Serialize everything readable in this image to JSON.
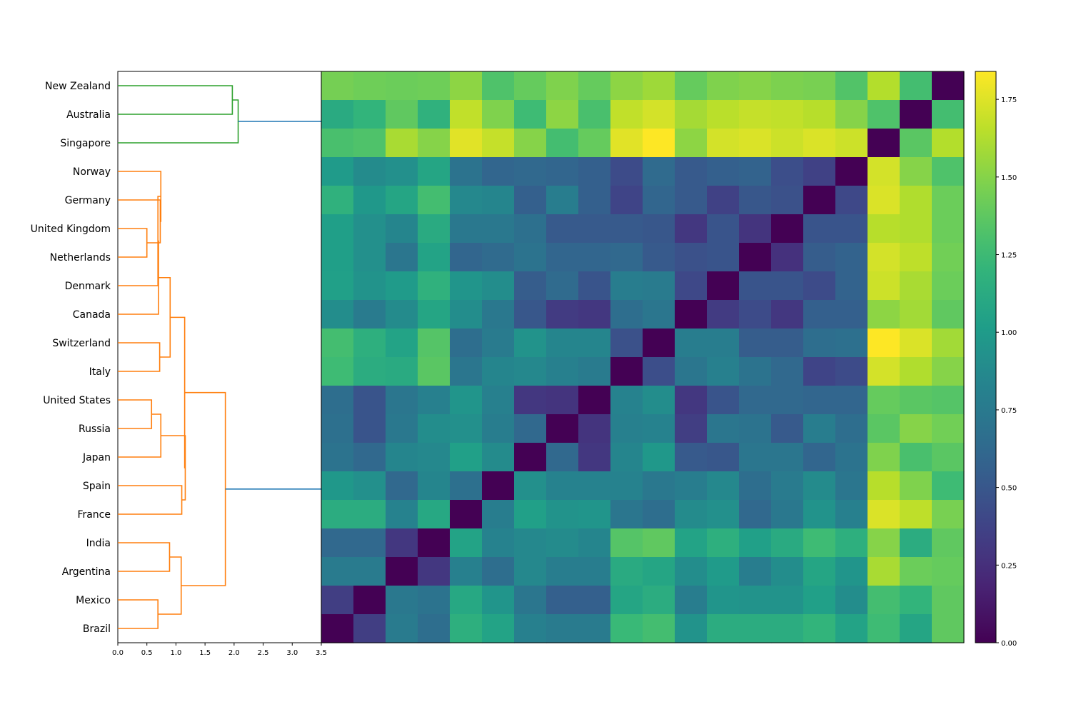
{
  "chart_data": {
    "type": "heatmap",
    "title": "",
    "xlabel": "",
    "ylabel": "",
    "rows": [
      "New Zealand",
      "Australia",
      "Singapore",
      "Norway",
      "Germany",
      "United Kingdom",
      "Netherlands",
      "Denmark",
      "Canada",
      "Switzerland",
      "Italy",
      "United States",
      "Russia",
      "Japan",
      "Spain",
      "France",
      "India",
      "Argentina",
      "Mexico",
      "Brazil"
    ],
    "colormap": "viridis",
    "vlim": [
      0,
      1.84
    ],
    "colorbar_ticks": [
      "0.00",
      "0.25",
      "0.50",
      "0.75",
      "1.00",
      "1.25",
      "1.50",
      "1.75"
    ],
    "dendrogram": {
      "xlim": [
        0,
        3.5
      ],
      "x_ticks": [
        "0.0",
        "0.5",
        "1.0",
        "1.5",
        "2.0",
        "2.5",
        "3.0",
        "3.5"
      ],
      "cluster_colors": {
        "c1": "#2ca02c",
        "c2": "#ff7f0e",
        "above": "#1f77b4"
      },
      "links": [
        {
          "a": "New Zealand",
          "b": "Australia",
          "height": 1.97,
          "color": "c1"
        },
        {
          "a": "L1",
          "b": "Singapore",
          "height": 2.07,
          "color": "c1"
        },
        {
          "a": "United Kingdom",
          "b": "Netherlands",
          "height": 0.5,
          "color": "c2"
        },
        {
          "a": "Germany",
          "b": "L3",
          "height": 0.73,
          "color": "c2"
        },
        {
          "a": "Norway",
          "b": "L4",
          "height": 0.74,
          "color": "c2"
        },
        {
          "a": "L5",
          "b": "Denmark",
          "height": 0.69,
          "color": "c2"
        },
        {
          "a": "L6",
          "b": "Canada",
          "height": 0.7,
          "color": "c2"
        },
        {
          "a": "Switzerland",
          "b": "Italy",
          "height": 0.72,
          "color": "c2"
        },
        {
          "a": "L7",
          "b": "L8",
          "height": 0.9,
          "color": "c2"
        },
        {
          "a": "United States",
          "b": "Russia",
          "height": 0.58,
          "color": "c2"
        },
        {
          "a": "L10",
          "b": "Japan",
          "height": 0.74,
          "color": "c2"
        },
        {
          "a": "Spain",
          "b": "France",
          "height": 1.1,
          "color": "c2"
        },
        {
          "a": "L11",
          "b": "L12",
          "height": 1.16,
          "color": "c2"
        },
        {
          "a": "L9",
          "b": "L13",
          "height": 1.15,
          "color": "c2"
        },
        {
          "a": "India",
          "b": "Argentina",
          "height": 0.89,
          "color": "c2"
        },
        {
          "a": "Mexico",
          "b": "Brazil",
          "height": 0.69,
          "color": "c2"
        },
        {
          "a": "L15",
          "b": "L16",
          "height": 1.09,
          "color": "c2"
        },
        {
          "a": "L14",
          "b": "L17",
          "height": 1.85,
          "color": "c2"
        }
      ],
      "top_links": [
        {
          "from": "L2",
          "to_height": 3.5,
          "color": "above"
        },
        {
          "from": "L18",
          "to_height": 3.5,
          "color": "above"
        }
      ]
    },
    "matrix": [
      [
        1.45,
        1.43,
        1.42,
        1.43,
        1.52,
        1.32,
        1.4,
        1.48,
        1.4,
        1.52,
        1.57,
        1.4,
        1.48,
        1.5,
        1.47,
        1.46,
        1.33,
        1.63,
        1.28,
        0.0
      ],
      [
        1.12,
        1.2,
        1.38,
        1.18,
        1.67,
        1.48,
        1.26,
        1.52,
        1.3,
        1.67,
        1.72,
        1.59,
        1.65,
        1.68,
        1.67,
        1.64,
        1.5,
        1.32,
        0.0,
        1.28
      ],
      [
        1.3,
        1.32,
        1.6,
        1.5,
        1.76,
        1.68,
        1.5,
        1.28,
        1.4,
        1.76,
        1.84,
        1.52,
        1.72,
        1.74,
        1.7,
        1.74,
        1.7,
        0.0,
        1.36,
        1.63
      ],
      [
        1.0,
        0.88,
        0.92,
        1.08,
        0.7,
        0.6,
        0.62,
        0.6,
        0.56,
        0.42,
        0.64,
        0.52,
        0.56,
        0.58,
        0.44,
        0.36,
        0.0,
        1.72,
        1.5,
        1.32
      ],
      [
        1.18,
        0.98,
        1.08,
        1.28,
        0.86,
        0.84,
        0.56,
        0.78,
        0.56,
        0.38,
        0.6,
        0.52,
        0.36,
        0.5,
        0.46,
        0.0,
        0.4,
        1.74,
        1.62,
        1.42
      ],
      [
        1.03,
        0.92,
        0.84,
        1.12,
        0.74,
        0.74,
        0.68,
        0.52,
        0.52,
        0.52,
        0.5,
        0.3,
        0.48,
        0.28,
        0.0,
        0.48,
        0.48,
        1.64,
        1.62,
        1.42
      ],
      [
        1.03,
        0.92,
        0.72,
        1.06,
        0.6,
        0.64,
        0.7,
        0.6,
        0.6,
        0.62,
        0.52,
        0.46,
        0.48,
        0.0,
        0.26,
        0.54,
        0.58,
        1.72,
        1.66,
        1.44
      ],
      [
        1.04,
        0.94,
        1.0,
        1.18,
        0.96,
        0.9,
        0.54,
        0.64,
        0.48,
        0.78,
        0.76,
        0.4,
        0.0,
        0.48,
        0.48,
        0.42,
        0.58,
        1.7,
        1.6,
        1.42
      ],
      [
        0.9,
        0.76,
        0.88,
        1.08,
        0.9,
        0.74,
        0.5,
        0.32,
        0.3,
        0.66,
        0.72,
        0.0,
        0.32,
        0.42,
        0.3,
        0.56,
        0.56,
        1.52,
        1.58,
        1.38
      ],
      [
        1.28,
        1.16,
        1.06,
        1.34,
        0.66,
        0.76,
        0.94,
        0.84,
        0.84,
        0.46,
        0.0,
        0.78,
        0.78,
        0.54,
        0.54,
        0.66,
        0.68,
        1.84,
        1.74,
        1.58
      ],
      [
        1.26,
        1.14,
        1.12,
        1.36,
        0.72,
        0.84,
        0.86,
        0.8,
        0.76,
        0.0,
        0.44,
        0.72,
        0.8,
        0.7,
        0.62,
        0.38,
        0.42,
        1.72,
        1.62,
        1.5
      ],
      [
        0.66,
        0.48,
        0.72,
        0.8,
        0.96,
        0.8,
        0.3,
        0.28,
        0.0,
        0.82,
        0.9,
        0.3,
        0.48,
        0.62,
        0.62,
        0.6,
        0.6,
        1.4,
        1.36,
        1.34
      ],
      [
        0.68,
        0.48,
        0.74,
        0.9,
        0.92,
        0.78,
        0.62,
        0.0,
        0.28,
        0.8,
        0.82,
        0.34,
        0.72,
        0.7,
        0.52,
        0.78,
        0.66,
        1.36,
        1.5,
        1.44
      ],
      [
        0.7,
        0.62,
        0.84,
        0.86,
        1.04,
        0.88,
        0.0,
        0.62,
        0.3,
        0.84,
        0.98,
        0.52,
        0.5,
        0.72,
        0.72,
        0.6,
        0.7,
        1.48,
        1.3,
        1.36
      ],
      [
        0.98,
        0.92,
        0.62,
        0.84,
        0.68,
        0.0,
        0.92,
        0.82,
        0.82,
        0.82,
        0.74,
        0.78,
        0.86,
        0.66,
        0.76,
        0.88,
        0.72,
        1.64,
        1.48,
        1.26
      ],
      [
        1.14,
        1.14,
        0.82,
        1.1,
        0.0,
        0.78,
        1.04,
        0.94,
        0.96,
        0.72,
        0.66,
        0.88,
        0.92,
        0.62,
        0.74,
        0.94,
        0.8,
        1.74,
        1.66,
        1.46
      ],
      [
        0.62,
        0.62,
        0.3,
        0.0,
        1.06,
        0.82,
        0.86,
        0.88,
        0.84,
        1.34,
        1.38,
        1.06,
        1.16,
        1.04,
        1.12,
        1.26,
        1.16,
        1.5,
        1.14,
        1.38
      ],
      [
        0.76,
        0.76,
        0.0,
        0.3,
        0.8,
        0.66,
        0.86,
        0.78,
        0.78,
        1.12,
        1.08,
        0.9,
        1.0,
        0.78,
        0.9,
        1.08,
        0.96,
        1.6,
        1.42,
        1.4
      ],
      [
        0.34,
        0.0,
        0.74,
        0.7,
        1.1,
        0.96,
        0.72,
        0.56,
        0.56,
        1.08,
        1.14,
        0.78,
        0.96,
        0.94,
        0.94,
        1.04,
        0.9,
        1.28,
        1.2,
        1.38
      ],
      [
        0.0,
        0.34,
        0.76,
        0.66,
        1.16,
        1.06,
        0.8,
        0.76,
        0.76,
        1.24,
        1.28,
        0.94,
        1.14,
        1.14,
        1.14,
        1.2,
        1.06,
        1.26,
        1.08,
        1.38
      ]
    ]
  }
}
